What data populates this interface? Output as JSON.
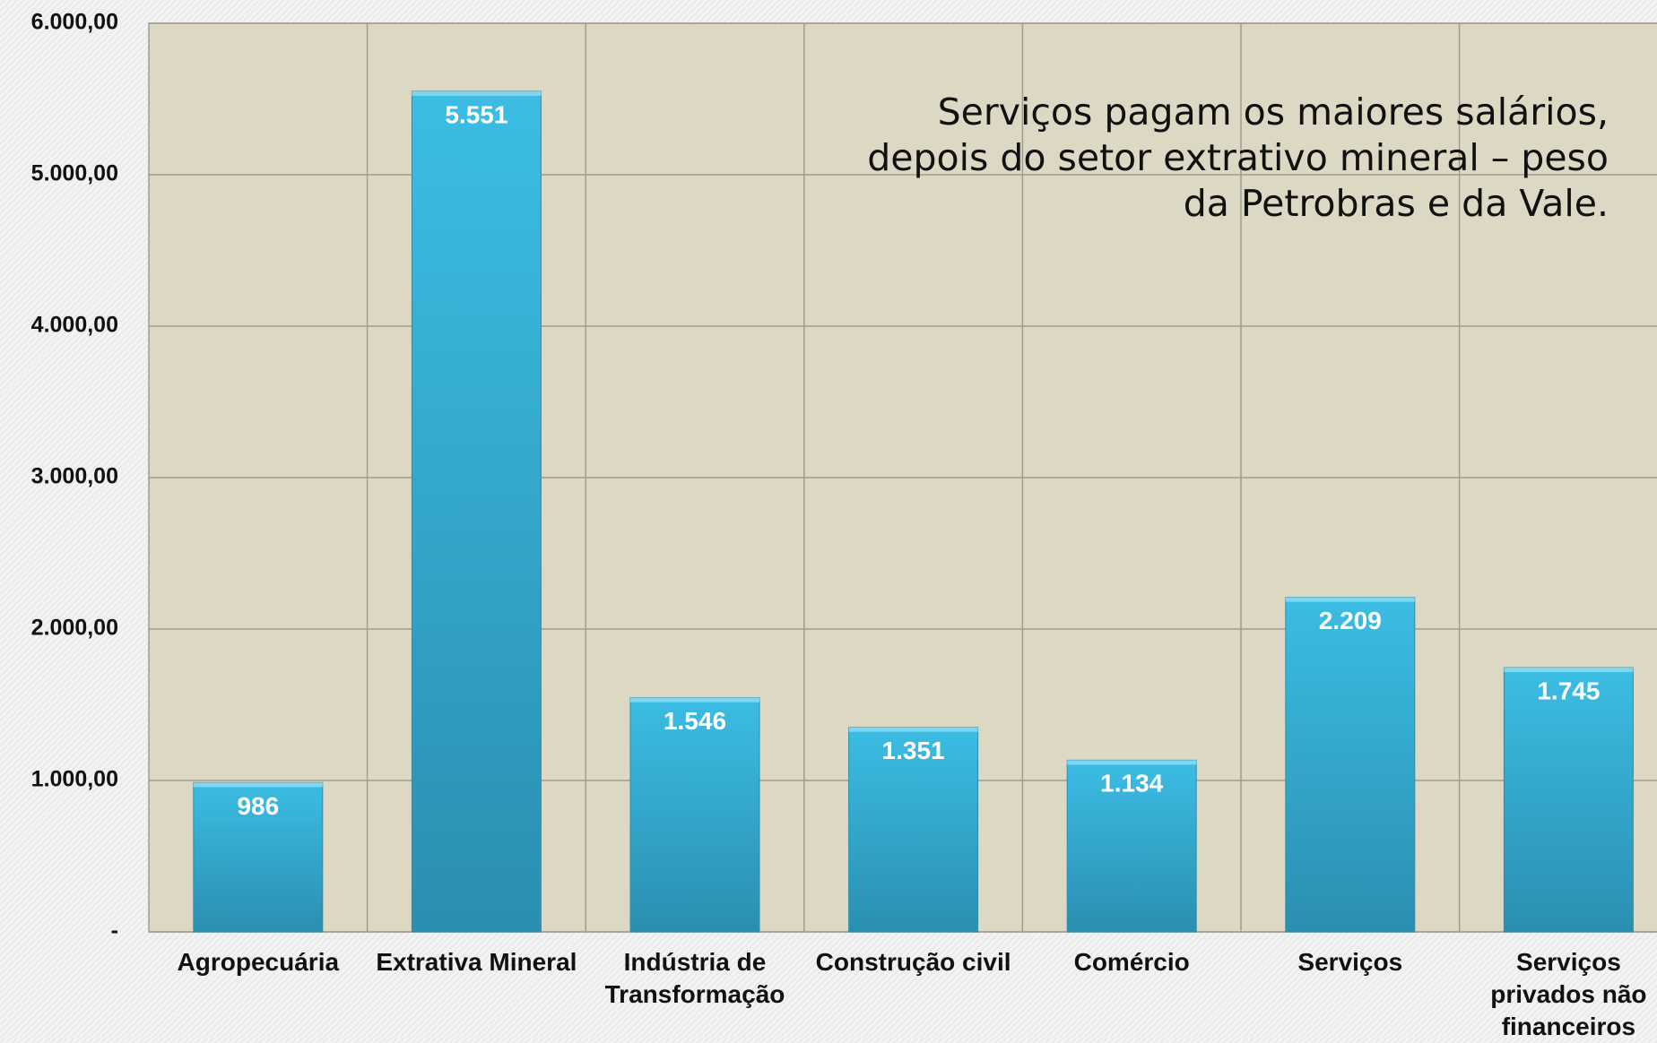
{
  "chart_data": {
    "type": "bar",
    "annotation": "Serviços pagam os maiores salários, depois do setor extrativo mineral – peso da Petrobras e da Vale.",
    "categories": [
      "Agropecuária",
      "Extrativa Mineral",
      "Indústria de Transformação",
      "Construção civil",
      "Comércio",
      "Serviços",
      "Serviços privados não financeiros"
    ],
    "values": [
      986,
      5551,
      1546,
      1351,
      1134,
      2209,
      1745
    ],
    "value_labels": [
      "986",
      "5.551",
      "1.546",
      "1.351",
      "1.134",
      "2.209",
      "1.745"
    ],
    "color": "#36aed4",
    "ylim": [
      0,
      6000
    ],
    "yticks": [
      {
        "value": 0,
        "label": "-"
      },
      {
        "value": 1000,
        "label": "1.000,00"
      },
      {
        "value": 2000,
        "label": "2.000,00"
      },
      {
        "value": 3000,
        "label": "3.000,00"
      },
      {
        "value": 4000,
        "label": "4.000,00"
      },
      {
        "value": 5000,
        "label": "5.000,00"
      },
      {
        "value": 6000,
        "label": "6.000,00"
      }
    ],
    "grid": true
  }
}
